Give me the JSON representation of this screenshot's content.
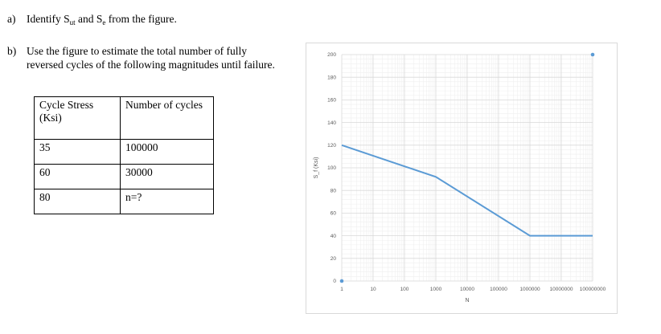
{
  "questions": {
    "a": {
      "label": "a)",
      "text_before": "Identify S",
      "sub1": "ut",
      "text_mid": " and S",
      "sub2": "e",
      "text_after": " from the figure."
    },
    "b": {
      "label": "b)",
      "text": "Use the figure to estimate the total number of fully reversed cycles of the following magnitudes until failure."
    }
  },
  "table": {
    "headers": [
      "Cycle Stress (Ksi)",
      "Number of cycles"
    ],
    "rows": [
      [
        "35",
        "100000"
      ],
      [
        "60",
        "30000"
      ],
      [
        "80",
        "n=?"
      ]
    ]
  },
  "colors": {
    "series": "#5b9bd5",
    "grid_major": "#d9d9d9",
    "grid_minor": "#efefef"
  },
  "chart_data": {
    "type": "line",
    "title": "",
    "xlabel": "N",
    "ylabel": "S_f (Ksi)",
    "x_scale": "log",
    "xlim": [
      1,
      100000000
    ],
    "ylim": [
      0,
      200
    ],
    "x_ticks": [
      "1",
      "10",
      "100",
      "1000",
      "10000",
      "100000",
      "1000000",
      "10000000",
      "100000000"
    ],
    "y_ticks": [
      "0",
      "20",
      "40",
      "60",
      "80",
      "100",
      "120",
      "140",
      "160",
      "180",
      "200"
    ],
    "grid": true,
    "series": [
      {
        "x": [
          1,
          1000,
          1000000,
          100000000
        ],
        "y": [
          120,
          92,
          40,
          40
        ]
      }
    ],
    "markers": [
      {
        "x": 1,
        "y": 0
      },
      {
        "x": 100000000,
        "y": 200
      }
    ]
  }
}
